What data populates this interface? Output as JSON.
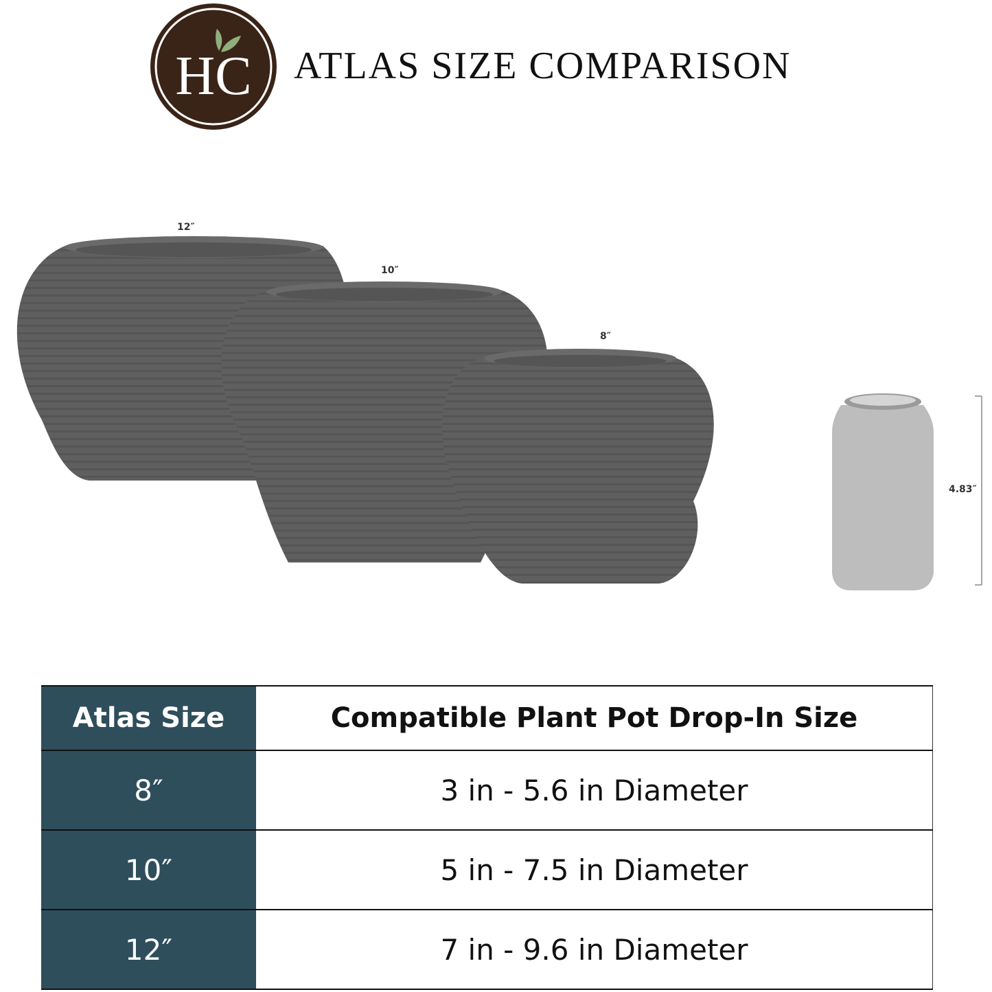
{
  "header": {
    "logo_text": "HC",
    "title": "ATLAS SIZE COMPARISON",
    "logo_color": "#3a2418",
    "leaf_color": "#8fb07a"
  },
  "pots": [
    {
      "label": "12″"
    },
    {
      "label": "10″"
    },
    {
      "label": "8″"
    }
  ],
  "can": {
    "height_label": "4.83″"
  },
  "table": {
    "headers": [
      "Atlas Size",
      "Compatible Plant Pot Drop-In Size"
    ],
    "rows": [
      {
        "size": "8″",
        "range": "3 in - 5.6 in Diameter"
      },
      {
        "size": "10″",
        "range": "5 in - 7.5 in Diameter"
      },
      {
        "size": "12″",
        "range": "7 in - 9.6 in Diameter"
      }
    ],
    "accent": "#2e4e5c"
  }
}
